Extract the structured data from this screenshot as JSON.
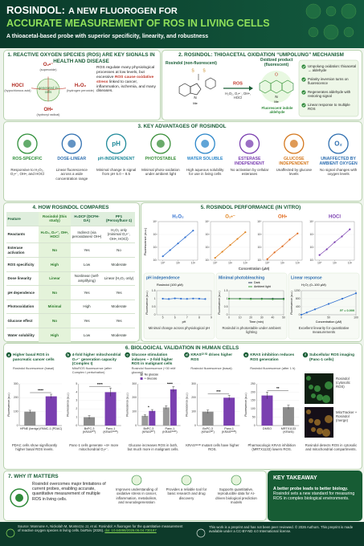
{
  "header": {
    "title_lead": "ROSINDOL:",
    "title_rest": "A NEW FLUOROGEN FOR",
    "title_line2": "ACCURATE MEASUREMENT OF ROS IN LIVING CELLS",
    "subtitle": "A thioacetal-based probe with superior specificity, linearity, and robustness"
  },
  "section1": {
    "title": "1. REACTIVE OXYGEN SPECIES (ROS) ARE KEY SIGNALS IN HEALTH AND DISEASE",
    "center": "generated in cells",
    "species": [
      {
        "formula": "O₂•⁻",
        "name": "(superoxide)"
      },
      {
        "formula": "H₂O₂",
        "name": "(hydrogen peroxide)"
      },
      {
        "formula": "OH•",
        "name": "(hydroxyl radical)"
      },
      {
        "formula": "HOCl",
        "name": "(hypochlorous acid)"
      }
    ],
    "text_before": "ROS regulate many physiological processes at low levels, but excessive",
    "text_emph": "ROS cause oxidative stress",
    "text_after": "linked to cancer, inflammation, ischemia, and many diseases."
  },
  "section2": {
    "title": "2. ROSINDOL: THIOACETAL OXIDATION “UMPOLUNG” MECHANISM",
    "probe_label": "Rosindol (non-fluorescent)",
    "sulfur": "S",
    "nitrogen": "N",
    "substituent": "Me",
    "oxygen": "O",
    "arrow_label": "ROS",
    "arrow_sublabel": "H₂O₂, O₂•⁻, OH•, HOCl",
    "product_label": "Oxidized product (fluorescent)",
    "product_caption": "Fluorescent indole aldehyde",
    "points": [
      "Umpolung oxidation: thioacetal → aldehyde",
      "Polarity inversion turns on fluorescence",
      "Regenerates aldehyde with restoring signal",
      "Linear response to multiple ROS"
    ]
  },
  "section3": {
    "title": "3. KEY ADVANTAGES OF ROSINDOL",
    "items": [
      {
        "title": "ROS-SPECIFIC",
        "text": "Responsive to H₂O₂, O₂•⁻, OH•, and HOCl",
        "color": "#2f8f3a"
      },
      {
        "title": "DOSE-LINEAR",
        "text": "Linear fluorescence across a wide concentration range",
        "color": "#2f6fb0"
      },
      {
        "title": "pH-INDEPENDENT",
        "text": "Minimal change in signal from pH 5.0 – 8.5",
        "color": "#1f8a9a",
        "icon": "pH"
      },
      {
        "title": "PHOTOSTABLE",
        "text": "Minimal photo-oxidation under ambient light",
        "color": "#3a8f3a"
      },
      {
        "title": "WATER SOLUBLE",
        "text": "High aqueous solubility for use in living cells",
        "color": "#2a86c9"
      },
      {
        "title": "ESTERASE INDEPENDENT",
        "text": "No activation by cellular esterases",
        "color": "#7a3fb0"
      },
      {
        "title": "GLUCOSE INDEPENDENT",
        "text": "Unaffected by glucose levels",
        "color": "#d4781e"
      },
      {
        "title": "UNAFFECTED BY AMBIENT OXYGEN",
        "text": "No signal changes with oxygen levels",
        "color": "#2f6fb0",
        "icon": "O₂"
      }
    ]
  },
  "section4": {
    "title": "4. HOW ROSINDOL COMPARES",
    "header": [
      "Feature",
      "Rosindol (this study)",
      "H₂DCF (DCFH-DA)",
      "PF1 (Peroxyfluor-1)"
    ],
    "rows": [
      [
        "Reactants",
        "H₂O₂, O₂•⁻, OH•, HOCl",
        "Indirect (via peroxidases/ OH•)",
        "H₂O₂ only (minimal O₂•⁻, OH•, HOCl)"
      ],
      [
        "Esterase activation",
        "No",
        "Yes",
        "No"
      ],
      [
        "ROS specificity",
        "High",
        "Low",
        "Moderate"
      ],
      [
        "Dose linearity",
        "Linear",
        "Nonlinear (self-amplifying)",
        "Linear (H₂O₂ only)"
      ],
      [
        "pH dependence",
        "No",
        "Yes",
        "Yes"
      ],
      [
        "Photooxidation",
        "Minimal",
        "High",
        "Moderate"
      ],
      [
        "Glucose effect",
        "No",
        "Yes",
        "Yes"
      ],
      [
        "Water solubility",
        "High",
        "Low",
        "Moderate"
      ]
    ]
  },
  "section5": {
    "title": "5. ROSINDOL PERFORMANCE (IN VITRO)",
    "ylabel": "Fluorescence (a.u.)",
    "xlabel": "Concentration (µM)",
    "xlim": [
      0.5,
      200
    ],
    "ylim": [
      10,
      10000
    ],
    "xticks": [
      {
        "value": 1,
        "label": "10⁰"
      },
      {
        "value": 10,
        "label": "10¹"
      },
      {
        "value": 100,
        "label": "10²"
      }
    ],
    "yticks": [
      {
        "value": 10,
        "label": "10¹"
      },
      {
        "value": 100,
        "label": "10²"
      },
      {
        "value": 1000,
        "label": "10³"
      },
      {
        "value": 10000,
        "label": "10⁴"
      }
    ],
    "plots": [
      {
        "title": "H₂O₂",
        "color": "#2f6fd0",
        "x": [
          1,
          3,
          10,
          30,
          100
        ],
        "values": [
          20,
          60,
          200,
          600,
          2000
        ]
      },
      {
        "title": "O₂•⁻",
        "color": "#e0831e",
        "x": [
          1,
          3,
          10,
          30,
          100
        ],
        "values": [
          15,
          45,
          150,
          450,
          1500
        ]
      },
      {
        "title": "OH•",
        "color": "#e06a1e",
        "x": [
          1,
          3,
          10,
          30,
          100
        ],
        "values": [
          12,
          40,
          120,
          400,
          1200
        ]
      },
      {
        "title": "HOCl",
        "color": "#7a3fb0",
        "x": [
          1,
          3,
          10,
          30,
          100
        ],
        "values": [
          25,
          70,
          250,
          700,
          2500
        ]
      }
    ],
    "panels": [
      {
        "title": "pH independence",
        "label": "Rosindol (100 µM)",
        "xlabel": "pH",
        "xlim": [
          4.5,
          9
        ],
        "xticks": [
          5,
          6,
          7,
          8,
          9
        ],
        "ylim": [
          0,
          1.5
        ],
        "yticks": [
          0,
          0.5,
          1,
          1.5
        ],
        "series": [
          {
            "color": "#2f6fd0",
            "x": [
              5,
              5.5,
              6,
              6.5,
              7,
              7.5,
              8,
              8.5
            ],
            "values": [
              1,
              0.98,
              1.02,
              1,
              0.99,
              1.01,
              1,
              0.98
            ]
          }
        ],
        "caption": "Minimal change across physiological pH"
      },
      {
        "title": "Minimal photobleaching",
        "xlabel": "Time (min)",
        "xlim": [
          0,
          50
        ],
        "xticks": [
          0,
          10,
          20,
          30,
          40,
          50
        ],
        "ylim": [
          0,
          1.5
        ],
        "yticks": [
          0,
          0.5,
          1,
          1.5
        ],
        "series": [
          {
            "name": "Dark",
            "color": "#2f3f5f",
            "x": [
              0,
              10,
              20,
              30,
              40,
              50
            ],
            "values": [
              1,
              1,
              1,
              1,
              1,
              1
            ]
          },
          {
            "name": "Ambient light",
            "color": "#3a9a3a",
            "x": [
              0,
              10,
              20,
              30,
              40,
              50
            ],
            "values": [
              1,
              0.99,
              0.98,
              0.98,
              0.97,
              0.97
            ]
          }
        ],
        "caption": "Rosindol is photostable under ambient lighting"
      },
      {
        "title": "Linear response",
        "label": "H₂O₂ (0–100 µM)",
        "annotation": "R² = 0.999",
        "xlabel": "Concentration (µM)",
        "xlim": [
          0,
          100
        ],
        "xticks": [
          0,
          50,
          100
        ],
        "ylim": [
          0,
          1200
        ],
        "yticks": [
          0,
          400,
          800,
          1200
        ],
        "series": [
          {
            "color": "#2f6fd0",
            "x": [
              0,
              10,
              25,
              50,
              75,
              100
            ],
            "values": [
              0,
              110,
              270,
              540,
              800,
              1070
            ]
          }
        ],
        "caption": "Excellent linearity for quantitative measurements"
      }
    ]
  },
  "section6": {
    "title": "6. BIOLOGICAL VALIDATION IN HUMAN CELLS",
    "ylabel": "Fluorescence (a.u.)",
    "panels": [
      {
        "letter": "a",
        "title": "Higher basal ROS in pancreatic cancer cells",
        "subtitle": "Rosindol fluorescence (basal)",
        "categories": [
          "HPNE (benign)",
          "PANC-1 (PDAC)"
        ],
        "values": [
          100,
          210
        ],
        "errors": [
          10,
          15
        ],
        "colors": [
          "#8c8c8c",
          "#7a3fb0"
        ],
        "sig": "****",
        "ylim": [
          0,
          300
        ],
        "yticks": [
          0,
          100,
          200,
          300
        ],
        "caption": "PDAC cells show significantly higher basal ROS levels."
      },
      {
        "letter": "b",
        "title": "4-fold higher mitochondrial O₂•⁻ generation capacity (Complex I)",
        "subtitle": "MitoROS fluorescence (after Complex I perturbation)",
        "categories": [
          "BxPC-3 (KRASᵂᵀ)",
          "Panc-1 (KRASᴳ¹²ᴰ)"
        ],
        "values": [
          1.0,
          4.0
        ],
        "errors": [
          0.2,
          0.5
        ],
        "colors": [
          "#8c8c8c",
          "#7a3fb0"
        ],
        "sig": "****",
        "ylim": [
          0,
          5
        ],
        "yticks": [
          0,
          1,
          2,
          3,
          4,
          5
        ],
        "caption": "Panc-1 cells generate ~4× more mitochondrial O₂•⁻."
      },
      {
        "letter": "c",
        "title": "Glucose stimulation induces ~ 2-fold higher ROS in malignant cells",
        "subtitle": "Rosindol fluorescence (+30 mM glucose)",
        "categories": [
          "BxPC-3 (KRASᵂᵀ)",
          "Panc-1 (KRASᴳ¹²ᴰ)"
        ],
        "series": [
          {
            "name": "No glucose",
            "color": "#9a9a9a",
            "values": [
              70,
              130
            ],
            "errors": [
              8,
              12
            ]
          },
          {
            "name": "+ Glucose",
            "color": "#7a3fb0",
            "values": [
              105,
              260
            ],
            "errors": [
              10,
              20
            ]
          }
        ],
        "sigs": [
          "*",
          "****"
        ],
        "ylim": [
          0,
          300
        ],
        "yticks": [
          0,
          100,
          200,
          300
        ],
        "caption": "Glucose increases ROS in both, but much more in malignant cells."
      },
      {
        "letter": "d",
        "title": "KRASᴳ¹²ᴰ drives higher ROS",
        "subtitle": "Rosindol fluorescence (basal)",
        "categories": [
          "BxPC-3 (KRASᵂᵀ)",
          "Panc-1 (KRASᴳ¹²ᴰ)"
        ],
        "values": [
          100,
          200
        ],
        "errors": [
          12,
          18
        ],
        "colors": [
          "#8c8c8c",
          "#7a3fb0"
        ],
        "sig": "***",
        "ylim": [
          0,
          300
        ],
        "yticks": [
          0,
          100,
          200,
          300
        ],
        "caption": "KRASᴳ¹²ᴰ mutant cells have higher ROS."
      },
      {
        "letter": "e",
        "title": "KRAS inhibition reduces ROS generation",
        "subtitle": "Rosindol fluorescence (after 1 h)",
        "categories": [
          "DMSO",
          "MRTX1133 (KRASi)"
        ],
        "values": [
          180,
          110
        ],
        "errors": [
          20,
          12
        ],
        "colors": [
          "#7a3fb0",
          "#8c8c8c"
        ],
        "sig": "**",
        "ylim": [
          0,
          250
        ],
        "yticks": [
          0,
          50,
          100,
          150,
          200,
          250
        ],
        "caption": "Pharmacologic KRAS inhibition (MRTX1133) lowers ROS."
      },
      {
        "letter": "f",
        "title": "Subcellular ROS imaging (Panc-1 cells)",
        "image_labels": [
          "Rosindol (cytosolic ROS)",
          "MitoTracker + Rosindol (merge)"
        ],
        "caption": "Rosindol detects ROS in cytosolic and mitochondrial compartments."
      }
    ]
  },
  "section7": {
    "title": "7. WHY IT MATTERS",
    "text": "Rosindol overcomes major limitations of current probes, enabling accurate, quantitative measurement of multiple ROS in living cells.",
    "items": [
      "Improves understanding of oxidative stress in cancer, inflammation, metabolism, and neurodegeneration",
      "Provides a reliable tool for basic research and drug discovery",
      "Supports quantitative, reproducible data for AI-driven biological prediction models"
    ],
    "takeaway_title": "KEY TAKEAWAY",
    "takeaway_lead": "A better probe leads to better biology.",
    "takeaway_text": "Rosindol sets a new standard for measuring ROS in complex biological environments."
  },
  "footer": {
    "source": "Source: Monnone A, Nickolah M, Montezzo JJ, et al. Rosindol: A fluorogen for the quantitative measurement of reactive oxygen species in living cells. bioRxiv (2026).",
    "doi": "doi: 10.64898/2026.06.04.730197",
    "license": "This work is a preprint and has not been peer reviewed. © 2026 Authors. This preprint is made available under a CC-BY-ND 4.0 International license."
  }
}
